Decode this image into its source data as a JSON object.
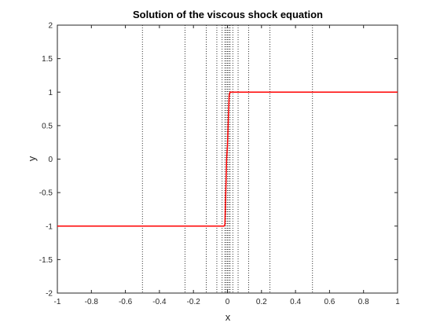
{
  "chart_data": {
    "type": "line",
    "title": "Solution of the viscous shock equation",
    "xlabel": "x",
    "ylabel": "y",
    "xlim": [
      -1,
      1
    ],
    "ylim": [
      -2,
      2
    ],
    "xticks": [
      -1,
      -0.8,
      -0.6,
      -0.4,
      -0.2,
      0,
      0.2,
      0.4,
      0.6,
      0.8,
      1
    ],
    "xtick_labels": [
      "-1",
      "-0.8",
      "-0.6",
      "-0.4",
      "-0.2",
      "0",
      "0.2",
      "0.4",
      "0.6",
      "0.8",
      "1"
    ],
    "yticks": [
      -2,
      -1.5,
      -1,
      -0.5,
      0,
      0.5,
      1,
      1.5,
      2
    ],
    "ytick_labels": [
      "-2",
      "-1.5",
      "-1",
      "-0.5",
      "0",
      "0.5",
      "1",
      "1.5",
      "2"
    ],
    "grid": false,
    "series": [
      {
        "color": "#ff0000",
        "x": [
          -1,
          -0.02,
          -0.015,
          -0.01,
          -0.005,
          0,
          0.005,
          0.01,
          0.015,
          0.02,
          1
        ],
        "y": [
          -1,
          -1,
          -0.98,
          -0.5,
          0,
          0.2,
          0.6,
          0.95,
          1,
          1,
          1
        ]
      }
    ],
    "mesh_lines": {
      "style": "dotted",
      "color": "#000000",
      "x": [
        -0.5,
        -0.25,
        -0.125,
        -0.0625,
        -0.03125,
        -0.015625,
        -0.0078125,
        0,
        0.0078125,
        0.015625,
        0.03125,
        0.0625,
        0.125,
        0.25,
        0.5
      ]
    }
  }
}
